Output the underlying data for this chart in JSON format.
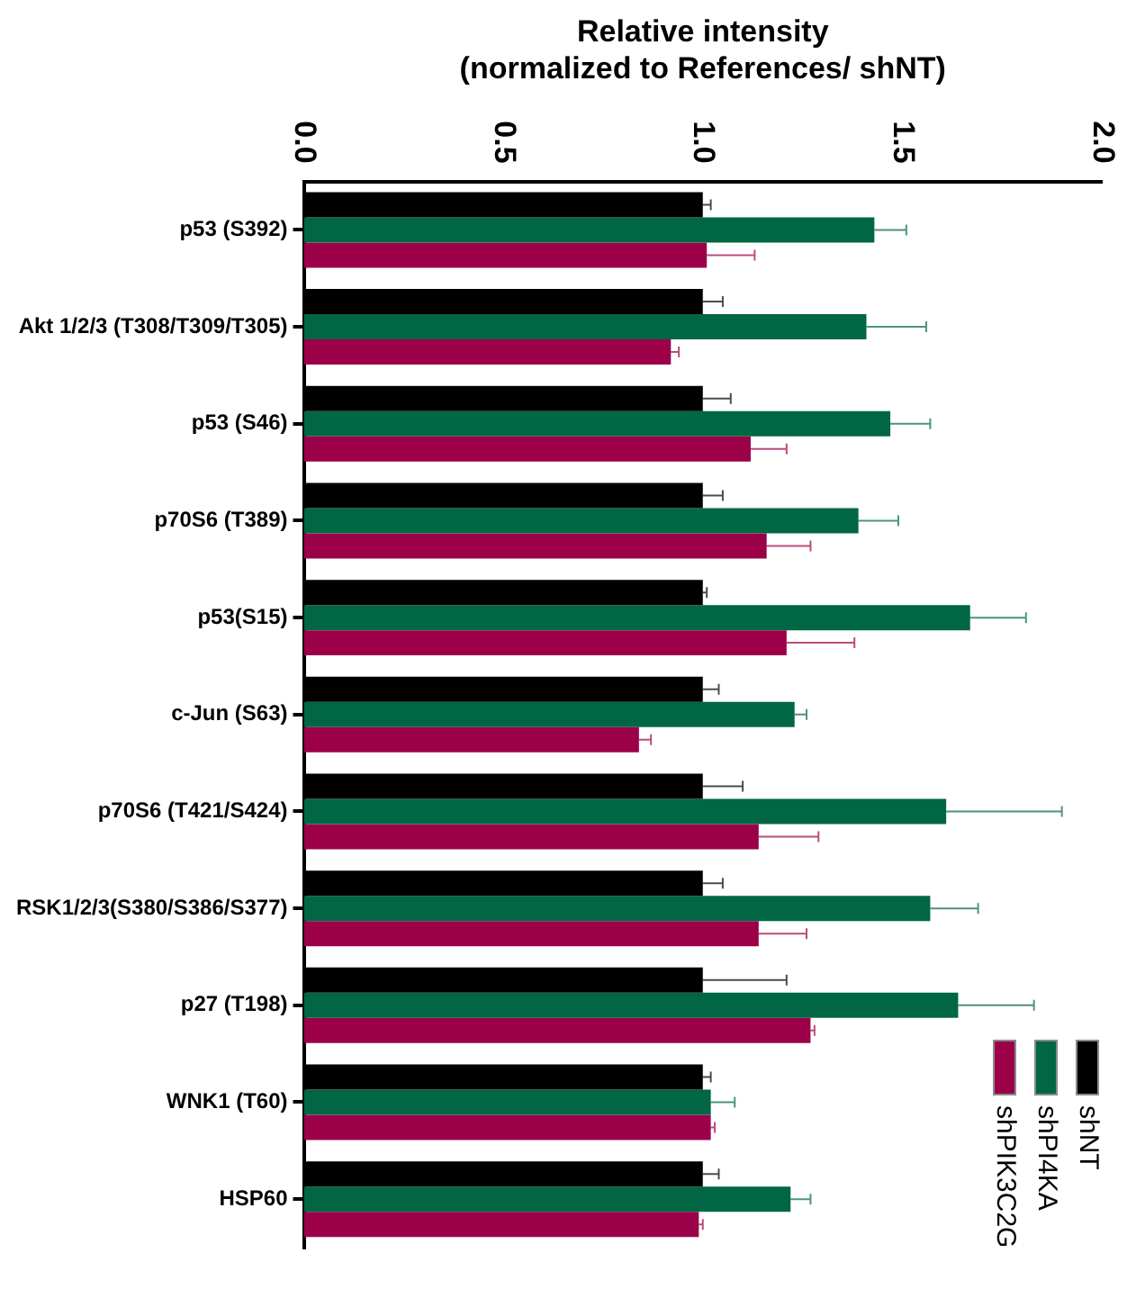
{
  "chart_data": {
    "type": "bar",
    "orientation": "horizontal",
    "xlabel": "Relative intensity\n(normalized to References/ shNT)",
    "categories": [
      "p53 (S392)",
      "Akt 1/2/3 (T308/T309/T305)",
      "p53 (S46)",
      "p70S6 (T389)",
      "p53(S15)",
      "c-Jun (S63)",
      "p70S6 (T421/S424)",
      "RSK1/2/3(S380/S386/S377)",
      "p27 (T198)",
      "WNK1 (T60)",
      "HSP60"
    ],
    "series": [
      {
        "name": "shNT",
        "color": "#000000",
        "values": [
          1.0,
          1.0,
          1.0,
          1.0,
          1.0,
          1.0,
          1.0,
          1.0,
          1.0,
          1.0,
          1.0
        ],
        "errors": [
          [
            1.0,
            1.02
          ],
          [
            1.0,
            1.05
          ],
          [
            1.0,
            1.07
          ],
          [
            1.0,
            1.05
          ],
          [
            1.0,
            1.01
          ],
          [
            1.0,
            1.04
          ],
          [
            1.0,
            1.1
          ],
          [
            1.0,
            1.05
          ],
          [
            1.0,
            1.21
          ],
          [
            1.0,
            1.02
          ],
          [
            1.0,
            1.04
          ]
        ]
      },
      {
        "name": "shPI4KA",
        "color": "#006644",
        "values": [
          1.43,
          1.41,
          1.47,
          1.39,
          1.67,
          1.23,
          1.61,
          1.57,
          1.64,
          1.02,
          1.22
        ],
        "errors": [
          [
            1.43,
            1.51
          ],
          [
            1.41,
            1.56
          ],
          [
            1.47,
            1.57
          ],
          [
            1.39,
            1.49
          ],
          [
            1.67,
            1.81
          ],
          [
            1.23,
            1.26
          ],
          [
            1.61,
            1.9
          ],
          [
            1.57,
            1.69
          ],
          [
            1.64,
            1.83
          ],
          [
            1.02,
            1.08
          ],
          [
            1.22,
            1.27
          ]
        ]
      },
      {
        "name": "shPIK3C2G",
        "color": "#9b0048",
        "values": [
          1.01,
          0.92,
          1.12,
          1.16,
          1.21,
          0.84,
          1.14,
          1.14,
          1.27,
          1.02,
          0.99
        ],
        "errors": [
          [
            1.01,
            1.13
          ],
          [
            0.92,
            0.94
          ],
          [
            1.12,
            1.21
          ],
          [
            1.16,
            1.27
          ],
          [
            1.21,
            1.38
          ],
          [
            0.84,
            0.87
          ],
          [
            1.14,
            1.29
          ],
          [
            1.14,
            1.26
          ],
          [
            1.27,
            1.28
          ],
          [
            1.02,
            1.03
          ],
          [
            0.99,
            1.0
          ]
        ]
      }
    ],
    "xlim": [
      0,
      2
    ],
    "xticks": [
      {
        "value": 0,
        "label": "0.0"
      },
      {
        "value": 0.5,
        "label": "0.5"
      },
      {
        "value": 1,
        "label": "1.0"
      },
      {
        "value": 1.5,
        "label": "1.5"
      },
      {
        "value": 2,
        "label": "2.0"
      }
    ],
    "grid": false,
    "legend": "bottom right"
  }
}
